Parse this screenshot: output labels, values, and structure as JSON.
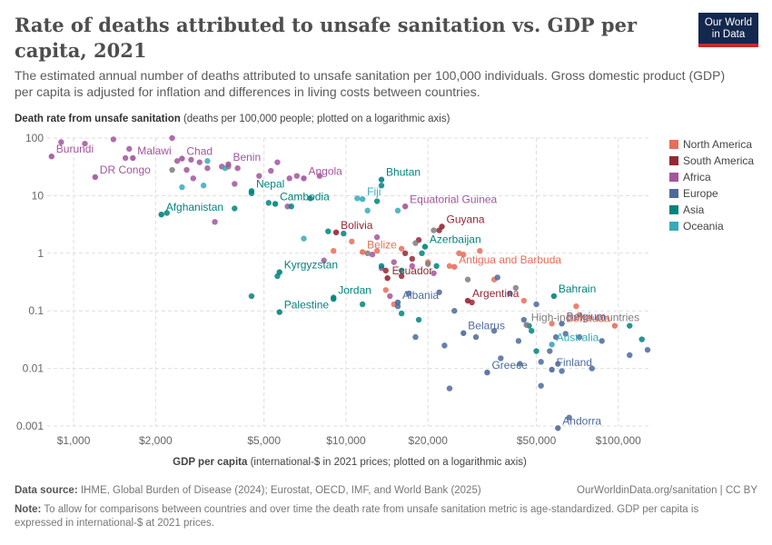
{
  "title": "Rate of deaths attributed to unsafe sanitation vs. GDP per capita, 2021",
  "subtitle": "The estimated annual number of deaths attributed to unsafe sanitation per 100,000 individuals. Gross domestic product (GDP) per capita is adjusted for inflation and differences in living costs between countries.",
  "logo": {
    "line1": "Our World",
    "line2": "in Data"
  },
  "ylabel_bold": "Death rate from unsafe sanitation",
  "ylabel_rest": " (deaths per 100,000 people; plotted on a logarithmic axis)",
  "xlabel_bold": "GDP per capita",
  "xlabel_rest": " (international-$ in 2021 prices; plotted on a logarithmic axis)",
  "source_label": "Data source:",
  "source_text": " IHME, Global Burden of Disease (2024); Eurostat, OECD, IMF, and World Bank (2025)",
  "url_text": "OurWorldinData.org/sanitation | CC BY",
  "note_label": "Note:",
  "note_text": " To allow for comparisons between countries and over time the death rate from unsafe sanitation metric is age-standardized. GDP per capita is expressed in international-$ at 2021 prices.",
  "chart_data": {
    "type": "scatter",
    "x_scale": "log",
    "y_scale": "log",
    "xlim": [
      800,
      130000
    ],
    "ylim": [
      0.001,
      100
    ],
    "x_ticks": [
      1000,
      2000,
      5000,
      10000,
      20000,
      50000,
      100000
    ],
    "x_tick_labels": [
      "$1,000",
      "$2,000",
      "$5,000",
      "$10,000",
      "$20,000",
      "$50,000",
      "$100,000"
    ],
    "y_ticks": [
      0.001,
      0.01,
      0.1,
      1,
      10,
      100
    ],
    "y_tick_labels": [
      "0.001",
      "0.01",
      "0.1",
      "1",
      "10",
      "100"
    ],
    "grid": true,
    "legend_position": "right",
    "series": [
      {
        "name": "North America",
        "color": "#e56e5a"
      },
      {
        "name": "South America",
        "color": "#932834"
      },
      {
        "name": "Africa",
        "color": "#a2559c"
      },
      {
        "name": "Europe",
        "color": "#4c6a9c"
      },
      {
        "name": "Asia",
        "color": "#00847e"
      },
      {
        "name": "Oceania",
        "color": "#38aaba"
      }
    ],
    "other_color": "#7e7e7e",
    "labeled_points": [
      {
        "label": "Burundi",
        "x": 830,
        "y": 48,
        "region": "Africa"
      },
      {
        "label": "Malawi",
        "x": 1650,
        "y": 45,
        "region": "Africa"
      },
      {
        "label": "Chad",
        "x": 2500,
        "y": 44,
        "region": "Africa"
      },
      {
        "label": "DR Congo",
        "x": 1200,
        "y": 21,
        "region": "Africa"
      },
      {
        "label": "Benin",
        "x": 3700,
        "y": 35,
        "region": "Africa"
      },
      {
        "label": "Angola",
        "x": 7000,
        "y": 20,
        "region": "Africa"
      },
      {
        "label": "Bhutan",
        "x": 13500,
        "y": 19,
        "region": "Asia"
      },
      {
        "label": "Nepal",
        "x": 4500,
        "y": 12,
        "region": "Asia"
      },
      {
        "label": "Fiji",
        "x": 11500,
        "y": 8.7,
        "region": "Oceania"
      },
      {
        "label": "Cambodia",
        "x": 5500,
        "y": 7.2,
        "region": "Asia"
      },
      {
        "label": "Equatorial Guinea",
        "x": 16500,
        "y": 6.5,
        "region": "Africa"
      },
      {
        "label": "Afghanistan",
        "x": 2100,
        "y": 4.7,
        "region": "Asia"
      },
      {
        "label": "Guyana",
        "x": 22500,
        "y": 2.9,
        "region": "South America"
      },
      {
        "label": "Bolivia",
        "x": 9200,
        "y": 2.3,
        "region": "South America"
      },
      {
        "label": "Azerbaijan",
        "x": 19500,
        "y": 1.3,
        "region": "Asia"
      },
      {
        "label": "Belize",
        "x": 11500,
        "y": 1.05,
        "region": "North America"
      },
      {
        "label": "Antigua and Barbuda",
        "x": 25000,
        "y": 0.58,
        "region": "North America"
      },
      {
        "label": "Kyrgyzstan",
        "x": 5700,
        "y": 0.47,
        "region": "Asia"
      },
      {
        "label": "Ecuador",
        "x": 14200,
        "y": 0.37,
        "region": "South America"
      },
      {
        "label": "Argentina",
        "x": 28000,
        "y": 0.15,
        "region": "South America"
      },
      {
        "label": "Bahrain",
        "x": 58000,
        "y": 0.18,
        "region": "Asia"
      },
      {
        "label": "Jordan",
        "x": 9000,
        "y": 0.17,
        "region": "Asia"
      },
      {
        "label": "Albania",
        "x": 15500,
        "y": 0.14,
        "region": "Europe"
      },
      {
        "label": "Palestine",
        "x": 5700,
        "y": 0.095,
        "region": "Asia"
      },
      {
        "label": "High-income countries",
        "x": 46000,
        "y": 0.057,
        "region": "Other"
      },
      {
        "label": "Belgium",
        "x": 62000,
        "y": 0.06,
        "region": "Europe"
      },
      {
        "label": "Bermuda",
        "x": 97000,
        "y": 0.055,
        "region": "North America"
      },
      {
        "label": "Belarus",
        "x": 27000,
        "y": 0.041,
        "region": "Europe"
      },
      {
        "label": "Australia",
        "x": 57000,
        "y": 0.026,
        "region": "Oceania"
      },
      {
        "label": "Finland",
        "x": 57000,
        "y": 0.0095,
        "region": "Europe"
      },
      {
        "label": "Greece",
        "x": 33000,
        "y": 0.0085,
        "region": "Europe"
      },
      {
        "label": "Andorra",
        "x": 60000,
        "y": 0.00092,
        "region": "Europe"
      }
    ],
    "points": [
      {
        "x": 900,
        "y": 85,
        "region": "Africa"
      },
      {
        "x": 1100,
        "y": 80,
        "region": "Africa"
      },
      {
        "x": 1400,
        "y": 95,
        "region": "Africa"
      },
      {
        "x": 1600,
        "y": 65,
        "region": "Africa"
      },
      {
        "x": 1550,
        "y": 45,
        "region": "Africa"
      },
      {
        "x": 2300,
        "y": 100,
        "region": "Africa"
      },
      {
        "x": 2400,
        "y": 40,
        "region": "Africa"
      },
      {
        "x": 2700,
        "y": 42,
        "region": "Africa"
      },
      {
        "x": 2900,
        "y": 38,
        "region": "Africa"
      },
      {
        "x": 2600,
        "y": 28,
        "region": "Africa"
      },
      {
        "x": 2750,
        "y": 20,
        "region": "Africa"
      },
      {
        "x": 3100,
        "y": 30,
        "region": "Africa"
      },
      {
        "x": 3500,
        "y": 32,
        "region": "Africa"
      },
      {
        "x": 4000,
        "y": 30,
        "region": "Africa"
      },
      {
        "x": 4800,
        "y": 22,
        "region": "Africa"
      },
      {
        "x": 5300,
        "y": 27,
        "region": "Africa"
      },
      {
        "x": 5600,
        "y": 38,
        "region": "Africa"
      },
      {
        "x": 6200,
        "y": 20,
        "region": "Africa"
      },
      {
        "x": 6600,
        "y": 22,
        "region": "Africa"
      },
      {
        "x": 3900,
        "y": 16,
        "region": "Africa"
      },
      {
        "x": 8000,
        "y": 22,
        "region": "Africa"
      },
      {
        "x": 3300,
        "y": 3.5,
        "region": "Africa"
      },
      {
        "x": 6100,
        "y": 6.5,
        "region": "Africa"
      },
      {
        "x": 13000,
        "y": 1.9,
        "region": "Africa"
      },
      {
        "x": 15000,
        "y": 0.7,
        "region": "Africa"
      },
      {
        "x": 13500,
        "y": 0.55,
        "region": "Africa"
      },
      {
        "x": 17500,
        "y": 0.6,
        "region": "Africa"
      },
      {
        "x": 21000,
        "y": 0.45,
        "region": "Africa"
      },
      {
        "x": 12500,
        "y": 0.95,
        "region": "Africa"
      },
      {
        "x": 8300,
        "y": 0.75,
        "region": "Africa"
      },
      {
        "x": 14500,
        "y": 0.18,
        "region": "Africa"
      },
      {
        "x": 2500,
        "y": 14,
        "region": "Oceania"
      },
      {
        "x": 3000,
        "y": 15,
        "region": "Oceania"
      },
      {
        "x": 3600,
        "y": 30,
        "region": "Oceania"
      },
      {
        "x": 3100,
        "y": 40,
        "region": "Oceania"
      },
      {
        "x": 11000,
        "y": 9,
        "region": "Oceania"
      },
      {
        "x": 12000,
        "y": 5.5,
        "region": "Oceania"
      },
      {
        "x": 15500,
        "y": 5.5,
        "region": "Oceania"
      },
      {
        "x": 7000,
        "y": 1.8,
        "region": "Oceania"
      },
      {
        "x": 2200,
        "y": 5,
        "region": "Asia"
      },
      {
        "x": 3900,
        "y": 6,
        "region": "Asia"
      },
      {
        "x": 4500,
        "y": 11,
        "region": "Asia"
      },
      {
        "x": 5200,
        "y": 7.5,
        "region": "Asia"
      },
      {
        "x": 6300,
        "y": 6.5,
        "region": "Asia"
      },
      {
        "x": 7400,
        "y": 9,
        "region": "Asia"
      },
      {
        "x": 13000,
        "y": 8,
        "region": "Asia"
      },
      {
        "x": 13500,
        "y": 15,
        "region": "Asia"
      },
      {
        "x": 9800,
        "y": 2.2,
        "region": "Asia"
      },
      {
        "x": 8600,
        "y": 2.4,
        "region": "Asia"
      },
      {
        "x": 5600,
        "y": 0.4,
        "region": "Asia"
      },
      {
        "x": 4500,
        "y": 0.18,
        "region": "Asia"
      },
      {
        "x": 11500,
        "y": 0.13,
        "region": "Asia"
      },
      {
        "x": 9000,
        "y": 0.16,
        "region": "Asia"
      },
      {
        "x": 16000,
        "y": 0.09,
        "region": "Asia"
      },
      {
        "x": 18500,
        "y": 0.07,
        "region": "Asia"
      },
      {
        "x": 19000,
        "y": 1.0,
        "region": "Asia"
      },
      {
        "x": 21500,
        "y": 0.6,
        "region": "Asia"
      },
      {
        "x": 16000,
        "y": 0.5,
        "region": "Asia"
      },
      {
        "x": 13500,
        "y": 0.6,
        "region": "Asia"
      },
      {
        "x": 47000,
        "y": 0.055,
        "region": "Asia"
      },
      {
        "x": 48000,
        "y": 0.045,
        "region": "Asia"
      },
      {
        "x": 50000,
        "y": 0.02,
        "region": "Asia"
      },
      {
        "x": 110000,
        "y": 0.055,
        "region": "Asia"
      },
      {
        "x": 122000,
        "y": 0.032,
        "region": "Asia"
      },
      {
        "x": 9000,
        "y": 1.1,
        "region": "North America"
      },
      {
        "x": 10500,
        "y": 1.6,
        "region": "North America"
      },
      {
        "x": 13000,
        "y": 1.1,
        "region": "North America"
      },
      {
        "x": 16000,
        "y": 1.2,
        "region": "North America"
      },
      {
        "x": 20000,
        "y": 0.7,
        "region": "North America"
      },
      {
        "x": 24000,
        "y": 0.6,
        "region": "North America"
      },
      {
        "x": 27000,
        "y": 0.95,
        "region": "North America"
      },
      {
        "x": 31000,
        "y": 1.1,
        "region": "North America"
      },
      {
        "x": 35000,
        "y": 0.35,
        "region": "North America"
      },
      {
        "x": 45000,
        "y": 0.15,
        "region": "North America"
      },
      {
        "x": 57000,
        "y": 0.06,
        "region": "North America"
      },
      {
        "x": 70000,
        "y": 0.12,
        "region": "North America"
      },
      {
        "x": 72000,
        "y": 0.085,
        "region": "North America"
      },
      {
        "x": 14000,
        "y": 0.23,
        "region": "North America"
      },
      {
        "x": 15000,
        "y": 0.13,
        "region": "North America"
      },
      {
        "x": 26000,
        "y": 1.0,
        "region": "North America"
      },
      {
        "x": 17500,
        "y": 0.8,
        "region": "South America"
      },
      {
        "x": 16500,
        "y": 1.0,
        "region": "South America"
      },
      {
        "x": 18500,
        "y": 1.7,
        "region": "South America"
      },
      {
        "x": 22000,
        "y": 2.5,
        "region": "South America"
      },
      {
        "x": 14000,
        "y": 0.5,
        "region": "South America"
      },
      {
        "x": 16000,
        "y": 0.4,
        "region": "South America"
      },
      {
        "x": 29000,
        "y": 0.14,
        "region": "South America"
      },
      {
        "x": 15500,
        "y": 0.12,
        "region": "Europe"
      },
      {
        "x": 17000,
        "y": 0.2,
        "region": "Europe"
      },
      {
        "x": 22000,
        "y": 0.21,
        "region": "Europe"
      },
      {
        "x": 25000,
        "y": 0.1,
        "region": "Europe"
      },
      {
        "x": 18000,
        "y": 0.035,
        "region": "Europe"
      },
      {
        "x": 23000,
        "y": 0.025,
        "region": "Europe"
      },
      {
        "x": 24000,
        "y": 0.0045,
        "region": "Europe"
      },
      {
        "x": 30000,
        "y": 0.035,
        "region": "Europe"
      },
      {
        "x": 35000,
        "y": 0.045,
        "region": "Europe"
      },
      {
        "x": 37000,
        "y": 0.015,
        "region": "Europe"
      },
      {
        "x": 40000,
        "y": 0.2,
        "region": "Europe"
      },
      {
        "x": 43000,
        "y": 0.03,
        "region": "Europe"
      },
      {
        "x": 43500,
        "y": 0.012,
        "region": "Europe"
      },
      {
        "x": 45000,
        "y": 0.07,
        "region": "Europe"
      },
      {
        "x": 52000,
        "y": 0.013,
        "region": "Europe"
      },
      {
        "x": 52000,
        "y": 0.005,
        "region": "Europe"
      },
      {
        "x": 56000,
        "y": 0.02,
        "region": "Europe"
      },
      {
        "x": 59000,
        "y": 0.035,
        "region": "Europe"
      },
      {
        "x": 60000,
        "y": 0.012,
        "region": "Europe"
      },
      {
        "x": 62000,
        "y": 0.009,
        "region": "Europe"
      },
      {
        "x": 64000,
        "y": 0.04,
        "region": "Europe"
      },
      {
        "x": 66000,
        "y": 0.0014,
        "region": "Europe"
      },
      {
        "x": 72000,
        "y": 0.035,
        "region": "Europe"
      },
      {
        "x": 80000,
        "y": 0.01,
        "region": "Europe"
      },
      {
        "x": 87000,
        "y": 0.03,
        "region": "Europe"
      },
      {
        "x": 110000,
        "y": 0.017,
        "region": "Europe"
      },
      {
        "x": 128000,
        "y": 0.021,
        "region": "Europe"
      },
      {
        "x": 36000,
        "y": 0.38,
        "region": "Europe"
      },
      {
        "x": 50000,
        "y": 0.13,
        "region": "Europe"
      },
      {
        "x": 2300,
        "y": 28,
        "region": "Other"
      },
      {
        "x": 3700,
        "y": 32,
        "region": "Other"
      },
      {
        "x": 12000,
        "y": 1.0,
        "region": "Other"
      },
      {
        "x": 18000,
        "y": 1.5,
        "region": "Other"
      },
      {
        "x": 20000,
        "y": 0.65,
        "region": "Other"
      },
      {
        "x": 21000,
        "y": 2.5,
        "region": "Other"
      },
      {
        "x": 28000,
        "y": 0.35,
        "region": "Other"
      },
      {
        "x": 42000,
        "y": 0.25,
        "region": "Other"
      }
    ]
  }
}
